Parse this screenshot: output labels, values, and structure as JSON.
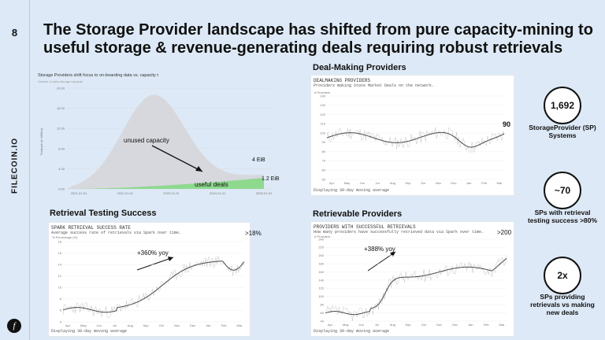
{
  "page_number": "8",
  "brand": "FILECOIN.IO",
  "logo_glyph": "f",
  "title": "The Storage Provider landscape has shifted from pure capacity-mining to useful storage & revenue-generating deals requiring robust retrievals",
  "capacity_chart": {
    "header": "Storage Providers shift focus to on-boarding data vs. capacity t",
    "subheader": "Volume of data storage capacity",
    "ylabel": "Terabyte (in Million)",
    "yticks": [
      "20.00",
      "16.00",
      "12.00",
      "8.00",
      "4.00",
      "0.00"
    ],
    "xticks": [
      "2021-01-01",
      "2022-01-01",
      "2023-01-01",
      "2024-01-01",
      "2025-01-01"
    ],
    "unused_label": "unused capacity",
    "useful_label": "useful deals",
    "cap_end_label": "4 EiB",
    "useful_end_label": "1.2 EiB",
    "colors": {
      "capacity": "#d7d8dd",
      "useful": "#8ed98e"
    }
  },
  "dealmaking": {
    "section_title": "Deal-Making Providers",
    "panel_title": "DEALMAKING PROVIDERS",
    "panel_sub": "Providers making State Market Deals on the network.",
    "ylabel": "# Providers",
    "yticks": [
      "140",
      "130",
      "120",
      "110",
      "100",
      "90",
      "80",
      "70",
      "60",
      "50"
    ],
    "xticks": [
      "Apr",
      "May",
      "Jun",
      "Jul",
      "Aug",
      "Sep",
      "Oct",
      "Nov",
      "Dec",
      "Jan",
      "Feb",
      "Mar"
    ],
    "end_value": "90",
    "footer": "Displaying 30-day moving average"
  },
  "retrieval_testing": {
    "section_title": "Retrieval Testing Success",
    "panel_title": "SPARK RETRIEVAL SUCCESS RATE",
    "panel_sub": "Average success rate of retrievals via Spark over time.",
    "ylabel": "% Percentage (%)",
    "yticks": [
      "18",
      "16",
      "14",
      "12",
      "10",
      "8",
      "6",
      "4"
    ],
    "xticks": [
      "Apr",
      "May",
      "Jun",
      "Jul",
      "Aug",
      "Sep",
      "Oct",
      "Nov",
      "Dec",
      "Jan",
      "Feb",
      "Mar"
    ],
    "yoy_label": "+360% yoy",
    "end_value": ">18%",
    "footer": "Displaying 30-day moving average"
  },
  "retrievable": {
    "section_title": "Retrievable Providers",
    "panel_title": "PROVIDERS WITH SUCCESSFUL RETRIEVALS",
    "panel_sub": "How many providers have successfully retrieved data via Spark over time.",
    "ylabel": "# Providers",
    "yticks": [
      "240",
      "220",
      "200",
      "180",
      "160",
      "140",
      "120",
      "100",
      "80",
      "60",
      "40"
    ],
    "xticks": [
      "Apr",
      "May",
      "Jun",
      "Jul",
      "Aug",
      "Sep",
      "Oct",
      "Nov",
      "Dec",
      "Jan",
      "Feb",
      "Mar"
    ],
    "yoy_label": "+388% yoy",
    "end_value": ">200",
    "footer": "Displaying 30-day moving average"
  },
  "stats": [
    {
      "value": "1,692",
      "label": "StorageProvider (SP) Systems"
    },
    {
      "value": "~70",
      "label": "SPs with retrieval testing success >80%"
    },
    {
      "value": "2x",
      "label": "SPs providing retrievals vs making new deals"
    }
  ]
}
